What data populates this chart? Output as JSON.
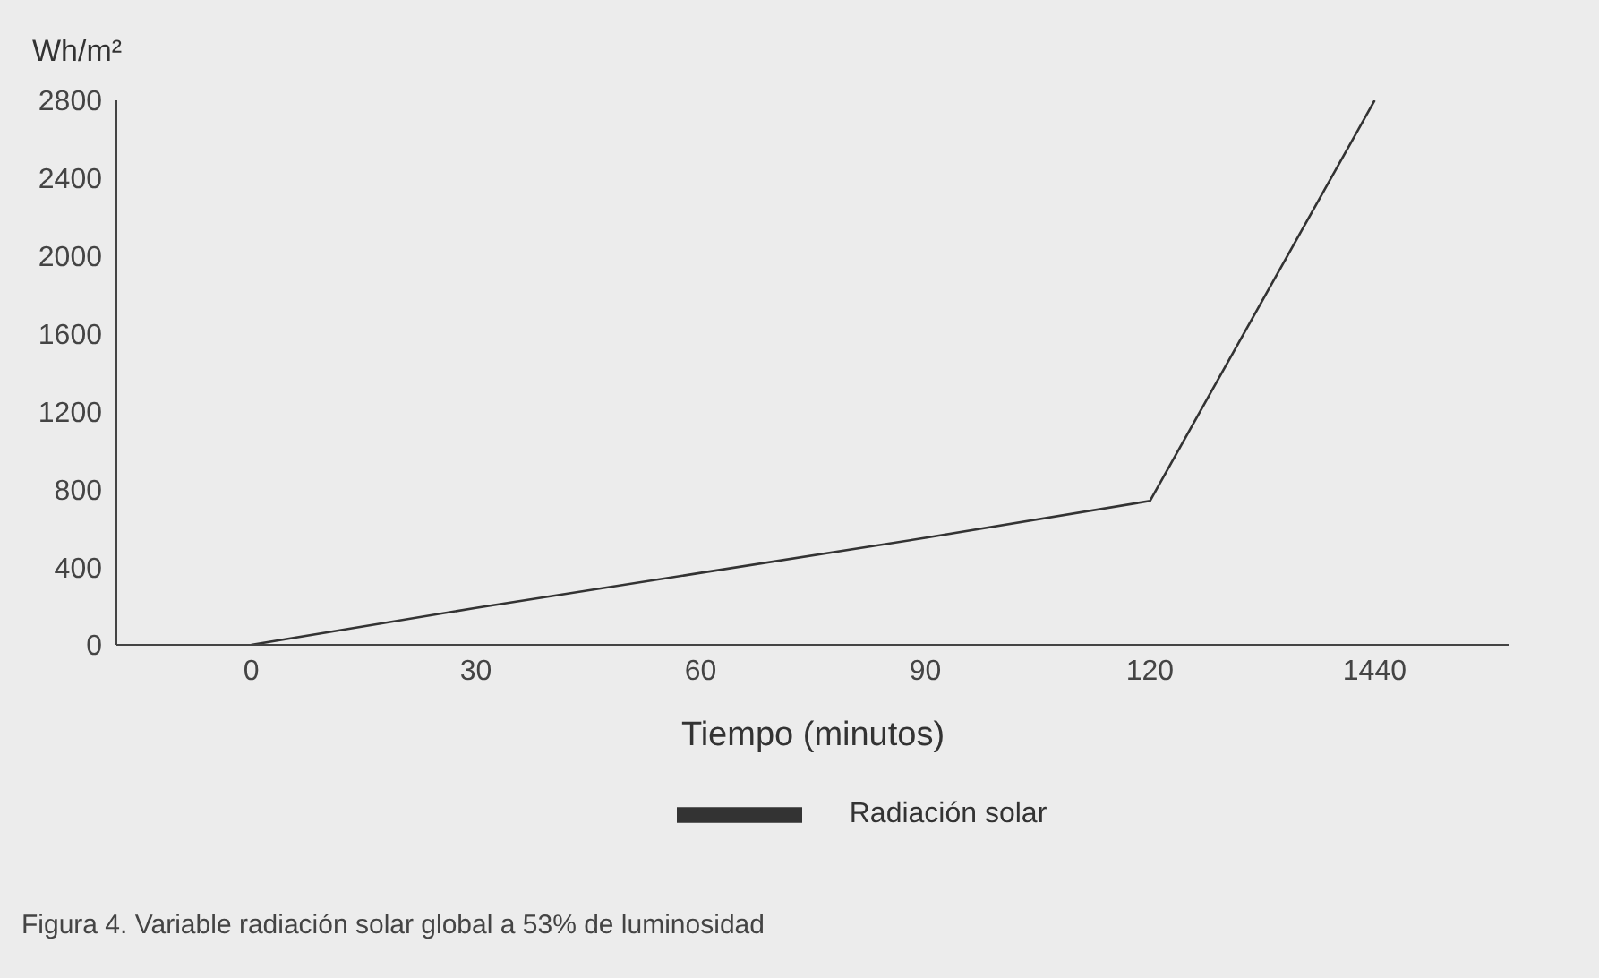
{
  "chart_data": {
    "type": "line",
    "ylabel": "Wh/m²",
    "xlabel": "Tiempo (minutos)",
    "categories": [
      "0",
      "30",
      "60",
      "90",
      "120",
      "1440"
    ],
    "series": [
      {
        "name": "Radiación solar",
        "color": "#333333",
        "values": [
          0,
          190,
          370,
          550,
          740,
          2800
        ]
      }
    ],
    "ylim": [
      0,
      2800
    ],
    "yticks": [
      0,
      400,
      800,
      1200,
      1600,
      2000,
      2400,
      2800
    ],
    "grid": false,
    "legend": "bottom",
    "marker": "none",
    "line_style": "solid",
    "annotations": [
      "Figura 4.  Variable radiación solar global a 53% de luminosidad"
    ]
  }
}
